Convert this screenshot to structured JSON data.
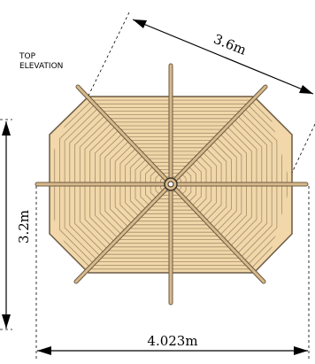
{
  "drawing": {
    "title_line1": "TOP",
    "title_line2": "ELEVATION",
    "dim_diagonal": "3.6m",
    "dim_height": "3.2m",
    "dim_width": "4.023m"
  },
  "colors": {
    "deck_fill": "#f1d7a9",
    "deck_edge": "#6b5a44",
    "joist": "#d8b98a",
    "plank_line": "#a48d6c",
    "line": "#000000"
  }
}
